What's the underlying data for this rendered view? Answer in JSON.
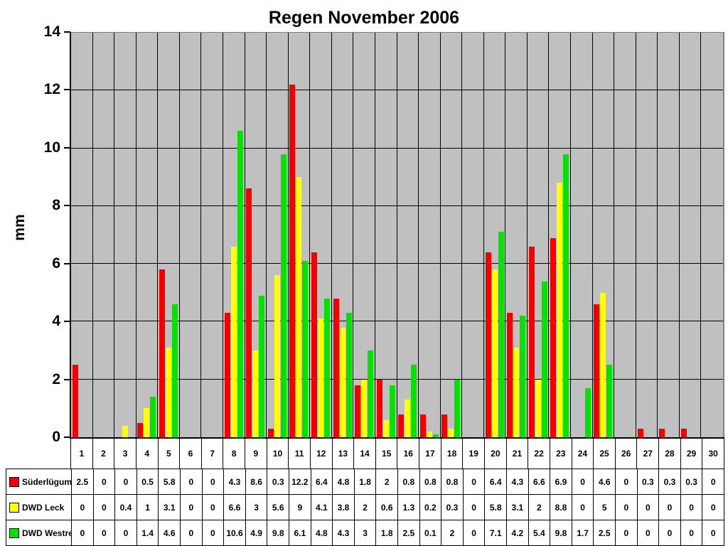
{
  "title": "Regen November 2006",
  "chart_data": {
    "type": "bar",
    "title": "Regen November 2006",
    "xlabel": "",
    "ylabel": "mm",
    "ylim": [
      0,
      14
    ],
    "y_ticks": [
      0,
      2,
      4,
      6,
      8,
      10,
      12,
      14
    ],
    "grid": true,
    "plot_background": "#c0c0c0",
    "gridline_color": "#000000",
    "legend_position": "table-left",
    "categories": [
      1,
      2,
      3,
      4,
      5,
      6,
      7,
      8,
      9,
      10,
      11,
      12,
      13,
      14,
      15,
      16,
      17,
      18,
      19,
      20,
      21,
      22,
      23,
      24,
      25,
      26,
      27,
      28,
      29,
      30
    ],
    "series": [
      {
        "name": "Süderlügum",
        "color": "#f40000",
        "values": [
          2.5,
          0,
          0,
          0.5,
          5.8,
          0,
          0,
          4.3,
          8.6,
          0.3,
          12.2,
          6.4,
          4.8,
          1.8,
          2,
          0.8,
          0.8,
          0.8,
          0,
          6.4,
          4.3,
          6.6,
          6.9,
          0,
          4.6,
          0,
          0.3,
          0.3,
          0.3,
          0
        ]
      },
      {
        "name": "DWD Leck",
        "color": "#ffff00",
        "values": [
          0,
          0,
          0.4,
          1,
          3.1,
          0,
          0,
          6.6,
          3,
          5.6,
          9,
          4.1,
          3.8,
          2,
          0.6,
          1.3,
          0.2,
          0.3,
          0,
          5.8,
          3.1,
          2,
          8.8,
          0,
          5,
          0,
          0,
          0,
          0,
          0
        ]
      },
      {
        "name": "DWD Westre",
        "color": "#00e400",
        "values": [
          0,
          0,
          0,
          1.4,
          4.6,
          0,
          0,
          10.6,
          4.9,
          9.8,
          6.1,
          4.8,
          4.3,
          3,
          1.8,
          2.5,
          0.1,
          2,
          0,
          7.1,
          4.2,
          5.4,
          9.8,
          1.7,
          2.5,
          0,
          0,
          0,
          0,
          0
        ]
      }
    ]
  }
}
